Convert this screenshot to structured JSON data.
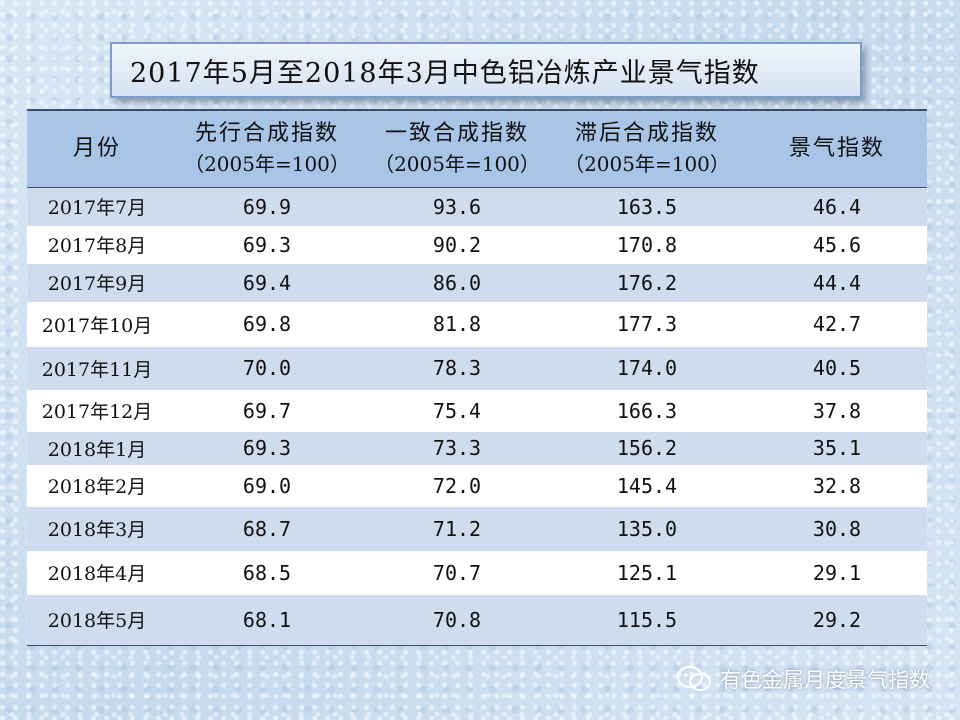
{
  "title": "2017年5月至2018年3月中色铝冶炼产业景气指数",
  "table": {
    "headers": [
      {
        "label": "月份",
        "sub": ""
      },
      {
        "label": "先行合成指数",
        "sub": "（2005年=100）"
      },
      {
        "label": "一致合成指数",
        "sub": "（2005年=100）"
      },
      {
        "label": "滞后合成指数",
        "sub": "（2005年=100）"
      },
      {
        "label": "景气指数",
        "sub": ""
      }
    ],
    "rows": [
      [
        "2017年7月",
        "69.9",
        "93.6",
        "163.5",
        "46.4"
      ],
      [
        "2017年8月",
        "69.3",
        "90.2",
        "170.8",
        "45.6"
      ],
      [
        "2017年9月",
        "69.4",
        "86.0",
        "176.2",
        "44.4"
      ],
      [
        "2017年10月",
        "69.8",
        "81.8",
        "177.3",
        "42.7"
      ],
      [
        "2017年11月",
        "70.0",
        "78.3",
        "174.0",
        "40.5"
      ],
      [
        "2017年12月",
        "69.7",
        "75.4",
        "166.3",
        "37.8"
      ],
      [
        "2018年1月",
        "69.3",
        "73.3",
        "156.2",
        "35.1"
      ],
      [
        "2018年2月",
        "69.0",
        "72.0",
        "145.4",
        "32.8"
      ],
      [
        "2018年3月",
        "68.7",
        "71.2",
        "135.0",
        "30.8"
      ],
      [
        "2018年4月",
        "68.5",
        "70.7",
        "125.1",
        "29.1"
      ],
      [
        "2018年5月",
        "68.1",
        "70.8",
        "115.5",
        "29.2"
      ]
    ]
  },
  "watermark": {
    "text": "有色金属月度景气指数",
    "icon": "wechat-icon"
  }
}
